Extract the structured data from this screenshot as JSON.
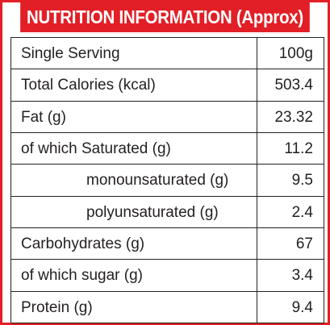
{
  "title": "NUTRITION INFORMATION (Approx)",
  "rows": [
    {
      "label": "Single Serving",
      "value": "100g"
    },
    {
      "label": "Total Calories (kcal)",
      "value": "503.4"
    },
    {
      "label": "Fat (g)",
      "value": "23.32"
    },
    {
      "label": "of which Saturated (g)",
      "value": "11.2"
    },
    {
      "label": "monounsaturated (g)",
      "value": "9.5"
    },
    {
      "label": "polyunsaturated (g)",
      "value": "2.4"
    },
    {
      "label": "Carbohydrates (g)",
      "value": "67"
    },
    {
      "label": "of which sugar (g)",
      "value": "3.4"
    },
    {
      "label": "Protein (g)",
      "value": "9.4"
    }
  ],
  "colors": {
    "accent": "#e21f26",
    "text": "#231f20"
  }
}
